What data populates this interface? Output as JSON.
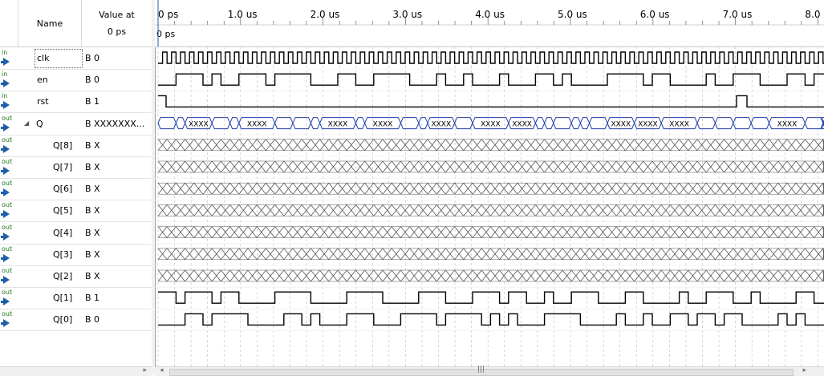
{
  "header": {
    "name_label": "Name",
    "value_label_line1": "Value at",
    "value_label_line2": "0 ps",
    "cursor_label": "0 ps"
  },
  "time_axis": {
    "ticks": [
      "0 ps",
      "1.0 us",
      "2.0 us",
      "3.0 us",
      "4.0 us",
      "5.0 us",
      "6.0 us",
      "7.0 us",
      "8.0 us"
    ]
  },
  "signals": [
    {
      "dir": "in",
      "name": "clk",
      "value": "B 0",
      "kind": "clock"
    },
    {
      "dir": "in",
      "name": "en",
      "value": "B 0",
      "kind": "bit"
    },
    {
      "dir": "in",
      "name": "rst",
      "value": "B 1",
      "kind": "bit"
    },
    {
      "dir": "out",
      "name": "Q",
      "value": "B XXXXXXX...",
      "kind": "bus",
      "expander": "◢",
      "bus_label": "XXXX"
    },
    {
      "dir": "out",
      "name": "Q[8]",
      "value": "B X",
      "kind": "x"
    },
    {
      "dir": "out",
      "name": "Q[7]",
      "value": "B X",
      "kind": "x"
    },
    {
      "dir": "out",
      "name": "Q[6]",
      "value": "B X",
      "kind": "x"
    },
    {
      "dir": "out",
      "name": "Q[5]",
      "value": "B X",
      "kind": "x"
    },
    {
      "dir": "out",
      "name": "Q[4]",
      "value": "B X",
      "kind": "x"
    },
    {
      "dir": "out",
      "name": "Q[3]",
      "value": "B X",
      "kind": "x"
    },
    {
      "dir": "out",
      "name": "Q[2]",
      "value": "B X",
      "kind": "x"
    },
    {
      "dir": "out",
      "name": "Q[1]",
      "value": "B 1",
      "kind": "bit"
    },
    {
      "dir": "out",
      "name": "Q[0]",
      "value": "B 0",
      "kind": "bit"
    }
  ],
  "scroll": {
    "grip": "|||"
  }
}
